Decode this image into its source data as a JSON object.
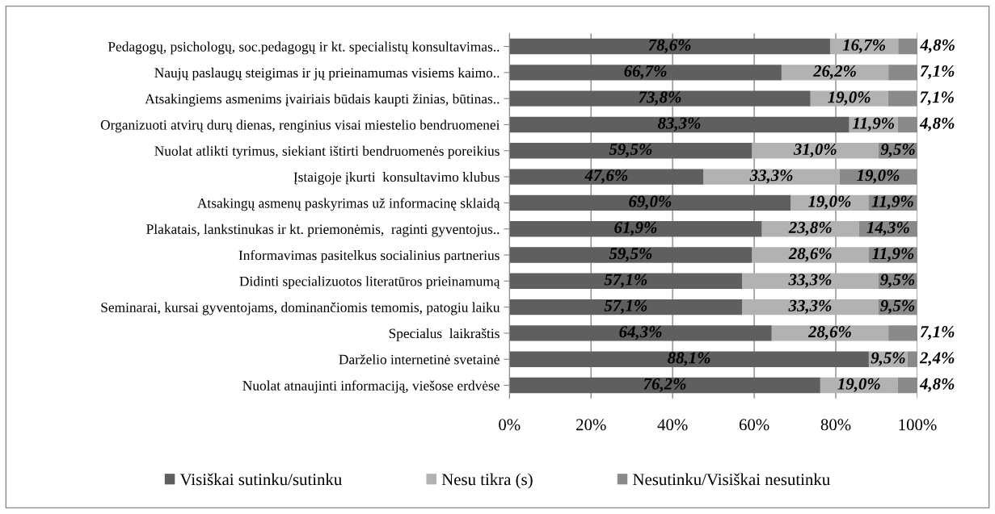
{
  "chart_data": {
    "type": "bar",
    "orientation": "horizontal",
    "stacked": true,
    "categories": [
      "Pedagogų, psichologų, soc.pedagogų ir kt. specialistų konsultavimas..",
      "Naujų paslaugų steigimas ir jų prieinamumas visiems kaimo..",
      "Atsakingiems asmenims įvairiais būdais kaupti žinias, būtinas..",
      "Organizuoti atvirų durų dienas, renginius visai miestelio bendruomenei",
      "Nuolat atlikti tyrimus, siekiant ištirti bendruomenės poreikius",
      "Įstaigoje įkurti  konsultavimo klubus",
      "Atsakingų asmenų paskyrimas už informacinę sklaidą",
      "Plakatais, lankstinukas ir kt. priemonėmis,  raginti gyventojus..",
      "Informavimas pasitelkus socialinius partnerius",
      "Didinti specializuotos literatūros prieinamumą",
      "Seminarai, kursai gyventojams, dominančiomis temomis, patogiu laiku",
      "Specialus  laikraštis",
      "Darželio internetinė svetainė",
      "Nuolat atnaujinti informaciją, viešose erdvėse"
    ],
    "series": [
      {
        "name": "Visiškai sutinku/sutinku",
        "color": "#5f5f5f",
        "values": [
          78.6,
          66.7,
          73.8,
          83.3,
          59.5,
          47.6,
          69.0,
          61.9,
          59.5,
          57.1,
          57.1,
          64.3,
          88.1,
          76.2
        ],
        "value_labels": [
          "78,6%",
          "66,7%",
          "73,8%",
          "83,3%",
          "59,5%",
          "47,6%",
          "69,0%",
          "61,9%",
          "59,5%",
          "57,1%",
          "57,1%",
          "64,3%",
          "88,1%",
          "76,2%"
        ]
      },
      {
        "name": "Nesu tikra (s)",
        "color": "#b2b2b2",
        "values": [
          16.7,
          26.2,
          19.0,
          11.9,
          31.0,
          33.3,
          19.0,
          23.8,
          28.6,
          33.3,
          33.3,
          28.6,
          9.5,
          19.0
        ],
        "value_labels": [
          "16,7%",
          "26,2%",
          "19,0%",
          "11,9%",
          "31,0%",
          "33,3%",
          "19,0%",
          "23,8%",
          "28,6%",
          "33,3%",
          "33,3%",
          "28,6%",
          "9,5%",
          "19,0%"
        ]
      },
      {
        "name": "Nesutinku/Visiškai nesutinku",
        "color": "#8a8a8a",
        "values": [
          4.8,
          7.1,
          7.1,
          4.8,
          9.5,
          19.0,
          11.9,
          14.3,
          11.9,
          9.5,
          9.5,
          7.1,
          2.4,
          4.8
        ],
        "value_labels": [
          "4,8%",
          "7,1%",
          "7,1%",
          "4,8%",
          "9,5%",
          "19,0%",
          "11,9%",
          "14,3%",
          "11,9%",
          "9,5%",
          "9,5%",
          "7,1%",
          "2,4%",
          "4,8%"
        ]
      }
    ],
    "xlim": [
      0,
      100
    ],
    "xticks": [
      {
        "value": 0,
        "label": "0%"
      },
      {
        "value": 20,
        "label": "20%"
      },
      {
        "value": 40,
        "label": "40%"
      },
      {
        "value": 60,
        "label": "60%"
      },
      {
        "value": 80,
        "label": "80%"
      },
      {
        "value": 100,
        "label": "100%"
      }
    ],
    "grid": "x",
    "legend": "bottom"
  }
}
